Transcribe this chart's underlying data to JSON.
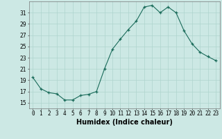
{
  "x": [
    0,
    1,
    2,
    3,
    4,
    5,
    6,
    7,
    8,
    9,
    10,
    11,
    12,
    13,
    14,
    15,
    16,
    17,
    18,
    19,
    20,
    21,
    22,
    23
  ],
  "y": [
    19.5,
    17.5,
    16.8,
    16.6,
    15.5,
    15.5,
    16.3,
    16.5,
    17.0,
    21.0,
    24.5,
    26.3,
    28.0,
    29.5,
    32.0,
    32.3,
    31.0,
    32.0,
    31.0,
    27.8,
    25.5,
    24.0,
    23.2,
    22.5
  ],
  "line_color": "#1a6b5a",
  "marker": "+",
  "bg_color": "#cce8e4",
  "grid_color": "#aed4ce",
  "xlabel": "Humidex (Indice chaleur)",
  "xlim": [
    -0.5,
    23.5
  ],
  "ylim": [
    14,
    33
  ],
  "yticks": [
    15,
    17,
    19,
    21,
    23,
    25,
    27,
    29,
    31
  ],
  "label_fontsize": 7,
  "tick_fontsize": 5.5
}
